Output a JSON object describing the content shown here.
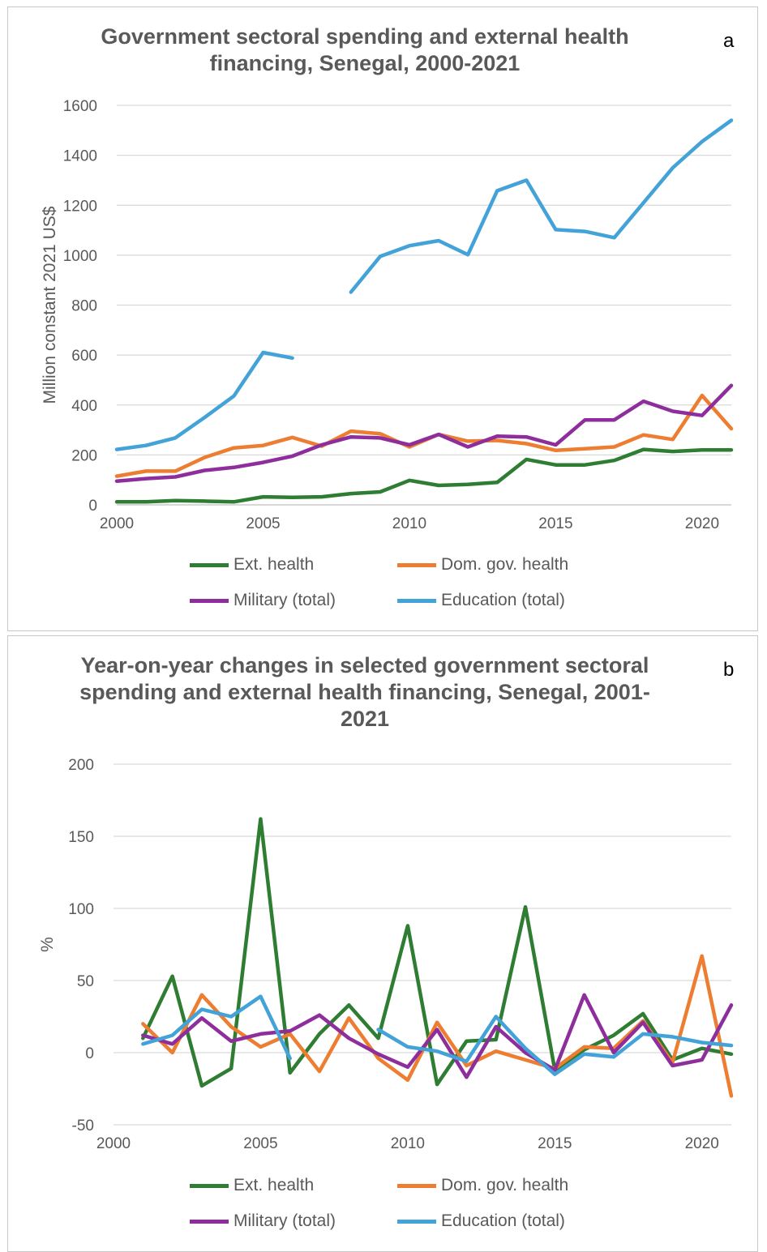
{
  "chart_data": [
    {
      "type": "line",
      "panel_label": "a",
      "title": "Government sectoral spending and external health financing, Senegal, 2000-2021",
      "xlabel": "",
      "ylabel": "Million constant 2021 US$",
      "x": [
        2000,
        2001,
        2002,
        2003,
        2004,
        2005,
        2006,
        2007,
        2008,
        2009,
        2010,
        2011,
        2012,
        2013,
        2014,
        2015,
        2016,
        2017,
        2018,
        2019,
        2020,
        2021
      ],
      "xlim": [
        2000,
        2021
      ],
      "ylim": [
        0,
        1600
      ],
      "xticks": [
        2000,
        2005,
        2010,
        2015,
        2020
      ],
      "yticks": [
        0,
        200,
        400,
        600,
        800,
        1000,
        1200,
        1400,
        1600
      ],
      "grid": "horizontal",
      "legend_position": "bottom",
      "series": [
        {
          "name": "Ext. health",
          "color": "#2e7d32",
          "values": [
            12,
            12,
            17,
            15,
            12,
            32,
            30,
            32,
            45,
            52,
            98,
            78,
            82,
            90,
            182,
            160,
            160,
            178,
            222,
            214,
            220,
            220
          ]
        },
        {
          "name": "Dom. gov. health",
          "color": "#ed7d31",
          "values": [
            115,
            135,
            135,
            190,
            228,
            238,
            270,
            235,
            295,
            285,
            232,
            282,
            255,
            258,
            245,
            218,
            225,
            232,
            280,
            262,
            438,
            305
          ]
        },
        {
          "name": "Military (total)",
          "color": "#8e2e9c",
          "values": [
            95,
            105,
            112,
            138,
            150,
            170,
            195,
            240,
            272,
            268,
            240,
            282,
            232,
            275,
            272,
            240,
            340,
            340,
            415,
            375,
            358,
            478
          ]
        },
        {
          "name": "Education (total)",
          "color": "#43a3d8",
          "values": [
            222,
            238,
            268,
            350,
            436,
            610,
            588,
            null,
            852,
            995,
            1038,
            1058,
            1002,
            1258,
            1300,
            1102,
            1095,
            1070,
            1210,
            1350,
            1455,
            1540
          ]
        }
      ]
    },
    {
      "type": "line",
      "panel_label": "b",
      "title": "Year-on-year changes in selected government sectoral spending and external health financing, Senegal, 2001-2021",
      "xlabel": "",
      "ylabel": "%",
      "x": [
        2001,
        2002,
        2003,
        2004,
        2005,
        2006,
        2007,
        2008,
        2009,
        2010,
        2011,
        2012,
        2013,
        2014,
        2015,
        2016,
        2017,
        2018,
        2019,
        2020,
        2021
      ],
      "xlim": [
        2000,
        2021
      ],
      "ylim": [
        -50,
        200
      ],
      "xticks": [
        2000,
        2005,
        2010,
        2015,
        2020
      ],
      "yticks": [
        -50,
        0,
        50,
        100,
        150,
        200
      ],
      "grid": "horizontal",
      "legend_position": "bottom",
      "series": [
        {
          "name": "Ext. health",
          "color": "#2e7d32",
          "values": [
            10,
            53,
            -23,
            -11,
            162,
            -14,
            13,
            33,
            10,
            88,
            -22,
            8,
            9,
            101,
            -12,
            2,
            12,
            27,
            -5,
            3,
            -1
          ]
        },
        {
          "name": "Dom. gov. health",
          "color": "#ed7d31",
          "values": [
            20,
            0,
            40,
            18,
            4,
            13,
            -13,
            24,
            -4,
            -19,
            21,
            -9,
            1,
            -5,
            -11,
            4,
            3,
            22,
            -7,
            67,
            -30
          ]
        },
        {
          "name": "Military (total)",
          "color": "#8e2e9c",
          "values": [
            12,
            6,
            24,
            8,
            13,
            15,
            26,
            10,
            -1,
            -10,
            16,
            -17,
            18,
            0,
            -12,
            40,
            0,
            21,
            -9,
            -5,
            33
          ]
        },
        {
          "name": "Education (total)",
          "color": "#43a3d8",
          "values": [
            6,
            12,
            30,
            25,
            39,
            -4,
            null,
            null,
            16,
            4,
            1,
            -6,
            25,
            3,
            -15,
            -1,
            -3,
            13,
            11,
            7,
            5
          ]
        }
      ]
    }
  ]
}
